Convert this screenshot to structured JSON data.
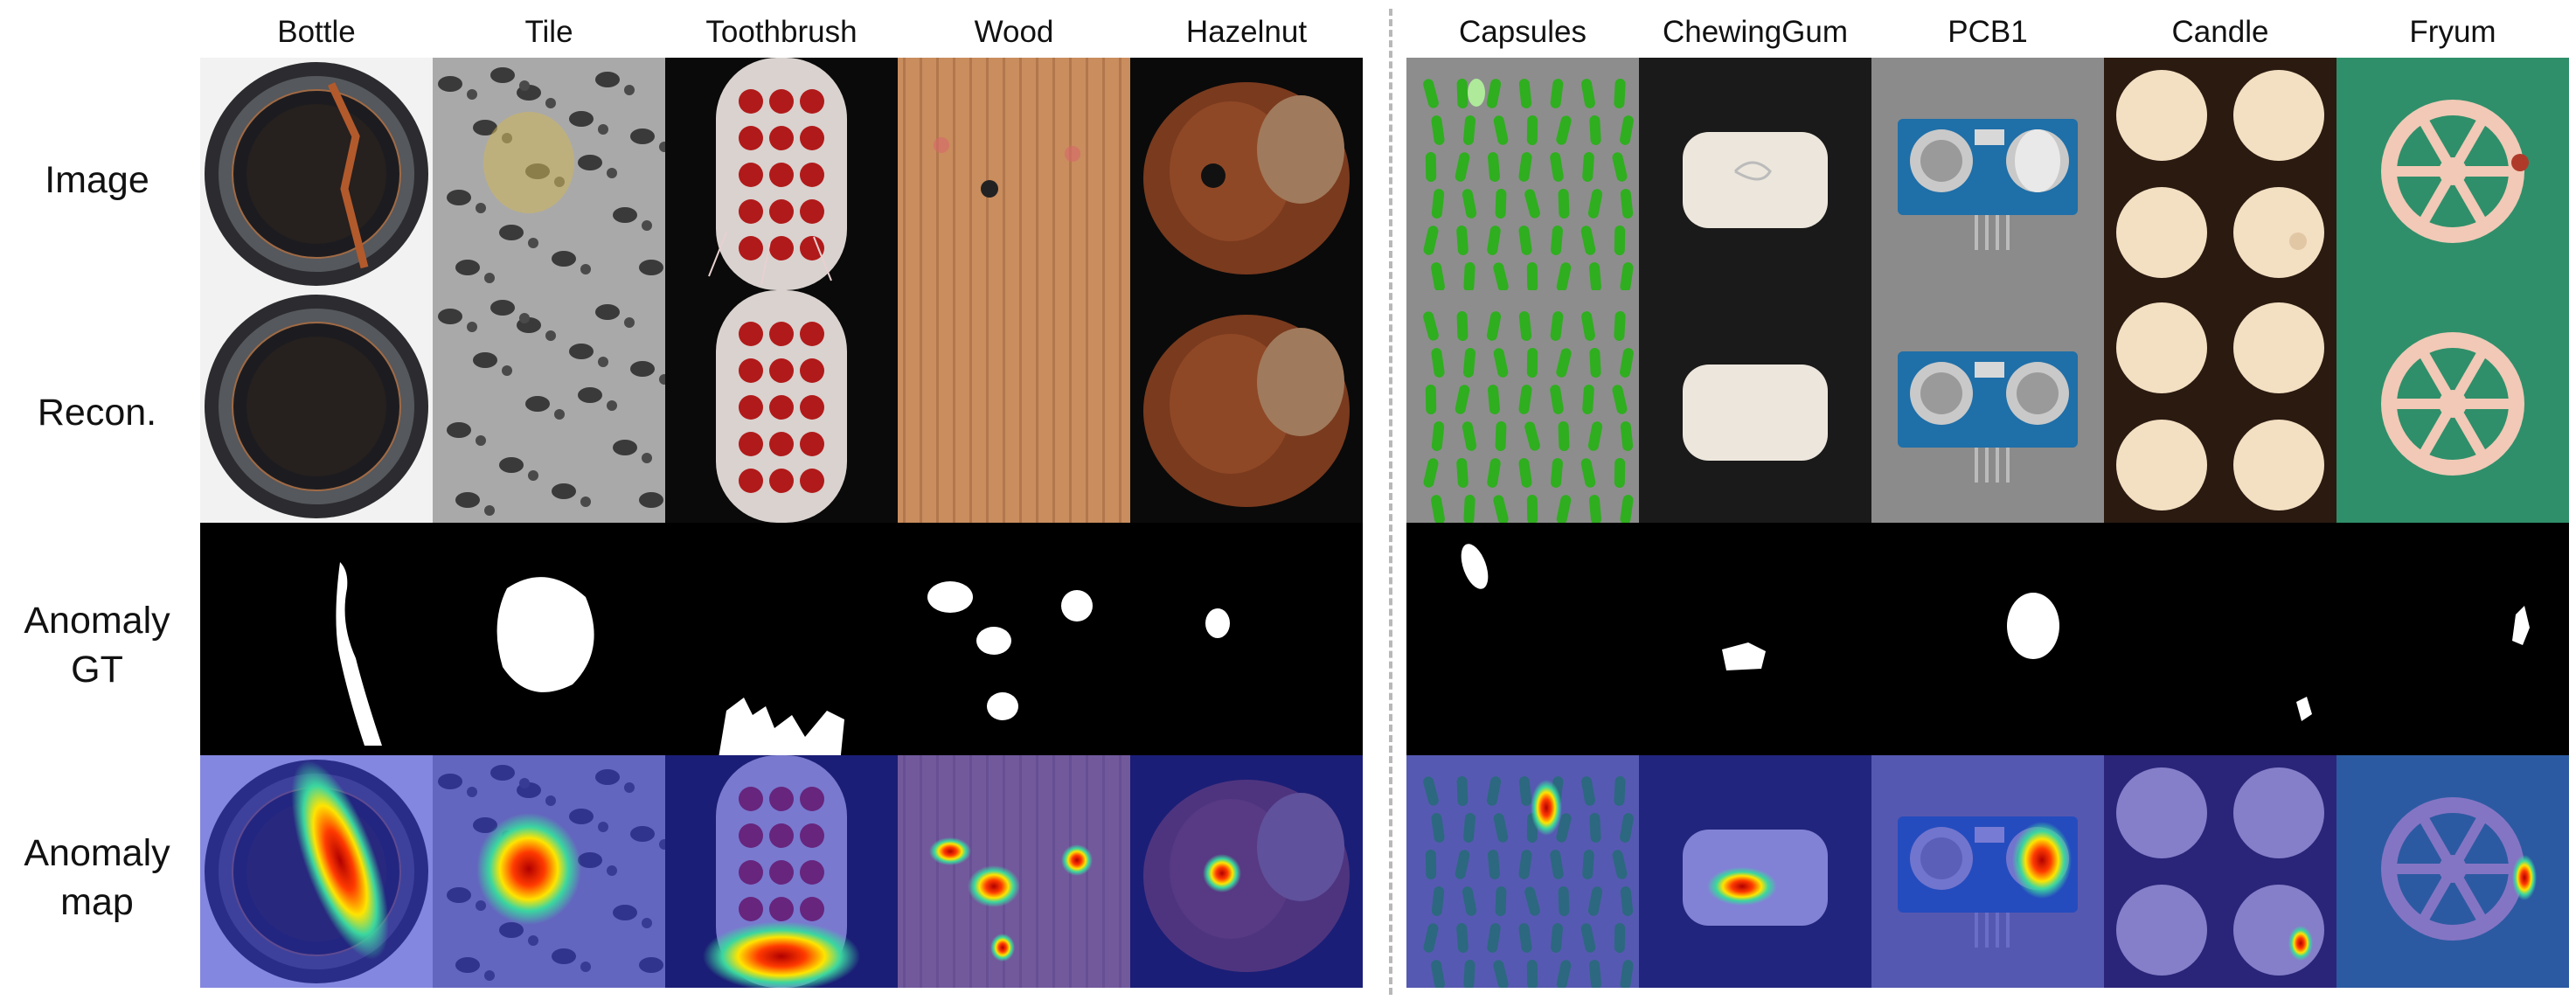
{
  "columns": [
    {
      "label": "Bottle"
    },
    {
      "label": "Tile"
    },
    {
      "label": "Toothbrush"
    },
    {
      "label": "Wood"
    },
    {
      "label": "Hazelnut"
    },
    {
      "label": "Capsules"
    },
    {
      "label": "ChewingGum"
    },
    {
      "label": "PCB1"
    },
    {
      "label": "Candle"
    },
    {
      "label": "Fryum"
    }
  ],
  "rows": [
    {
      "line1": "Image",
      "line2": ""
    },
    {
      "line1": "Recon.",
      "line2": ""
    },
    {
      "line1": "Anomaly",
      "line2": "GT"
    },
    {
      "line1": "Anomaly",
      "line2": "map"
    }
  ],
  "colors": {
    "mask_background": "#000000",
    "mask_foreground": "#ffffff",
    "divider": "#b8b8b8",
    "heatmap_tint": "#2a2fd0"
  }
}
